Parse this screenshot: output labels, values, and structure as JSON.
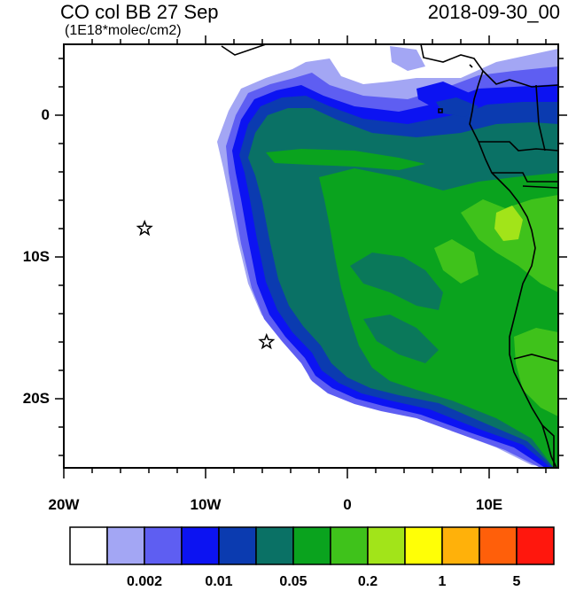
{
  "title": {
    "left": "CO col BB 27 Sep",
    "units": "(1E18*molec/cm2)",
    "right": "2018-09-30_00"
  },
  "axes": {
    "y_ticks": [
      "0",
      "10S",
      "20S"
    ],
    "x_ticks": [
      "20W",
      "10W",
      "0",
      "10E"
    ]
  },
  "colorbar": {
    "colors": [
      "#ffffff",
      "#a3a6f4",
      "#5e5ef2",
      "#0c13f2",
      "#0b3bb0",
      "#0a7165",
      "#0aa31e",
      "#3fc21b",
      "#a2e419",
      "#ffff06",
      "#ffb10a",
      "#ff5f0a",
      "#ff170d"
    ],
    "labels": [
      "0.002",
      "0.01",
      "0.05",
      "0.2",
      "1",
      "5"
    ]
  },
  "markers": [
    {
      "name": "star-marker-1",
      "lon": -14.3,
      "lat": -8.0
    },
    {
      "name": "star-marker-2",
      "lon": -5.7,
      "lat": -16.0
    }
  ]
}
